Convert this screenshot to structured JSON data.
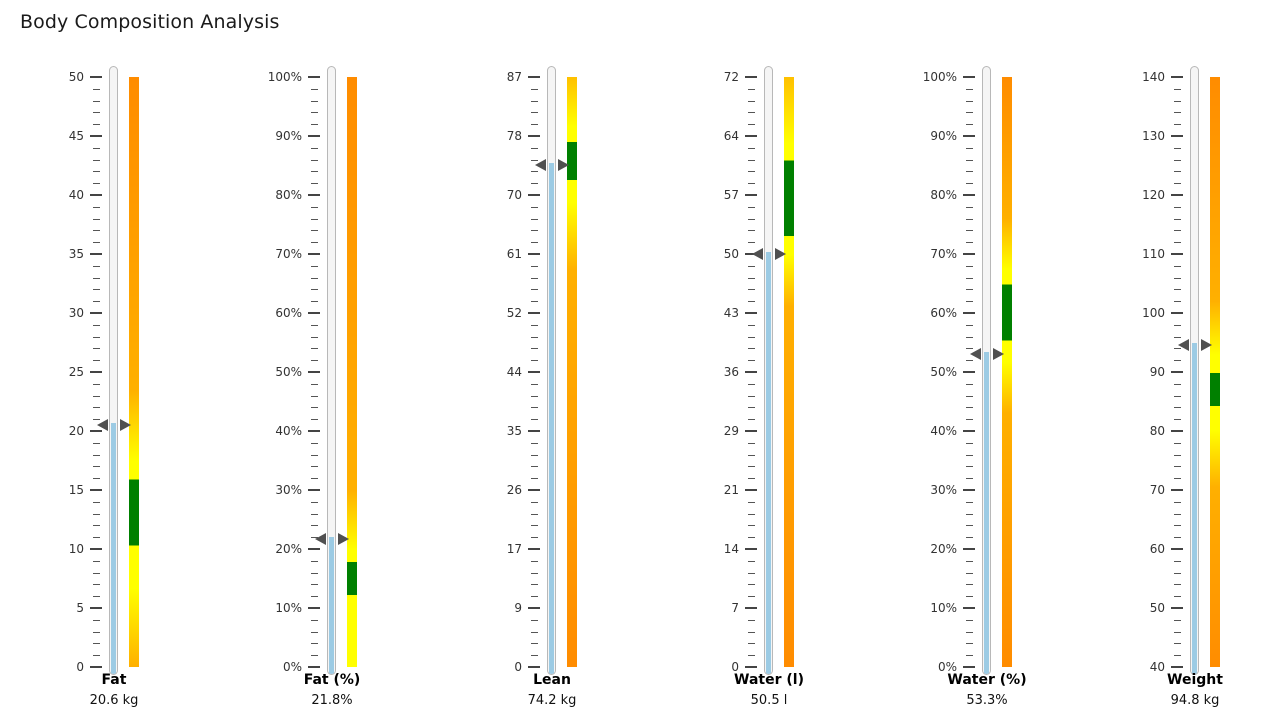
{
  "title": "Body Composition Analysis",
  "colors": {
    "fill": "#9ccbe4",
    "tube": "#f5f5f5",
    "green": "#008000",
    "yellow": "#ffff00",
    "orange": "#ff8c00",
    "pointer": "#505050"
  },
  "chart_data": {
    "type": "bar",
    "title": "Body Composition Analysis",
    "subtype": "linear-gauge",
    "categories": [
      "Fat",
      "Fat (%)",
      "Lean",
      "Water (l)",
      "Water (%)",
      "Weight"
    ],
    "values": [
      20.6,
      21.8,
      74.2,
      50.5,
      53.3,
      94.8
    ],
    "gauges": [
      {
        "label": "Fat",
        "value": 20.6,
        "display": "20.6 kg",
        "unit": "kg",
        "min": 0,
        "max": 50,
        "ticks": [
          "0",
          "5",
          "10",
          "15",
          "20",
          "25",
          "30",
          "35",
          "40",
          "45",
          "50"
        ],
        "normal_range": [
          10.3,
          15.9
        ],
        "zones": [
          {
            "from": 0,
            "to": 3,
            "color": "#ffb000"
          },
          {
            "from": 3,
            "to": 10.3,
            "color": "#ffff00"
          },
          {
            "from": 10.3,
            "to": 15.9,
            "color": "#008000"
          },
          {
            "from": 15.9,
            "to": 19,
            "color": "#ffff00"
          },
          {
            "from": 19,
            "to": 28,
            "color": "#ffb000"
          },
          {
            "from": 28,
            "to": 50,
            "color": "#ff8c00"
          }
        ]
      },
      {
        "label": "Fat (%)",
        "value": 21.8,
        "display": "21.8%",
        "unit": "%",
        "min": 0,
        "max": 100,
        "ticks": [
          "0%",
          "10%",
          "20%",
          "30%",
          "40%",
          "50%",
          "60%",
          "70%",
          "80%",
          "90%",
          "100%"
        ],
        "normal_range": [
          12.2,
          17.8
        ],
        "zones": [
          {
            "from": 0,
            "to": 12.2,
            "color": "#ffff00"
          },
          {
            "from": 12.2,
            "to": 17.8,
            "color": "#008000"
          },
          {
            "from": 17.8,
            "to": 22,
            "color": "#ffff00"
          },
          {
            "from": 22,
            "to": 38,
            "color": "#ffb000"
          },
          {
            "from": 38,
            "to": 100,
            "color": "#ff8c00"
          }
        ]
      },
      {
        "label": "Lean",
        "value": 74.2,
        "display": "74.2 kg",
        "unit": "kg",
        "min": 0,
        "max": 87,
        "ticks": [
          "0",
          "9",
          "17",
          "26",
          "35",
          "44",
          "52",
          "61",
          "70",
          "78",
          "87"
        ],
        "normal_range": [
          71.8,
          77.4
        ],
        "zones": [
          {
            "from": 0,
            "to": 52,
            "color": "#ff8c00"
          },
          {
            "from": 52,
            "to": 65,
            "color": "#ffb000"
          },
          {
            "from": 65,
            "to": 71.8,
            "color": "#ffff00"
          },
          {
            "from": 71.8,
            "to": 77.4,
            "color": "#008000"
          },
          {
            "from": 77.4,
            "to": 82,
            "color": "#ffff00"
          },
          {
            "from": 82,
            "to": 87,
            "color": "#ffc000"
          }
        ]
      },
      {
        "label": "Water (l)",
        "value": 50.5,
        "display": "50.5 l",
        "unit": "l",
        "min": 0,
        "max": 72,
        "ticks": [
          "0",
          "7",
          "14",
          "21",
          "29",
          "36",
          "43",
          "50",
          "57",
          "64",
          "72"
        ],
        "normal_range": [
          52.6,
          61.8
        ],
        "zones": [
          {
            "from": 0,
            "to": 40,
            "color": "#ff8c00"
          },
          {
            "from": 40,
            "to": 48,
            "color": "#ffb000"
          },
          {
            "from": 48,
            "to": 52.6,
            "color": "#ffff00"
          },
          {
            "from": 52.6,
            "to": 61.8,
            "color": "#008000"
          },
          {
            "from": 61.8,
            "to": 66,
            "color": "#ffff00"
          },
          {
            "from": 66,
            "to": 72,
            "color": "#ffc000"
          }
        ]
      },
      {
        "label": "Water (%)",
        "value": 53.3,
        "display": "53.3%",
        "unit": "%",
        "min": 0,
        "max": 100,
        "ticks": [
          "0%",
          "10%",
          "20%",
          "30%",
          "40%",
          "50%",
          "60%",
          "70%",
          "80%",
          "90%",
          "100%"
        ],
        "normal_range": [
          55.3,
          64.8
        ],
        "zones": [
          {
            "from": 0,
            "to": 38,
            "color": "#ff8c00"
          },
          {
            "from": 38,
            "to": 48,
            "color": "#ffb000"
          },
          {
            "from": 48,
            "to": 55.3,
            "color": "#ffff00"
          },
          {
            "from": 55.3,
            "to": 64.8,
            "color": "#008000"
          },
          {
            "from": 64.8,
            "to": 70,
            "color": "#ffff00"
          },
          {
            "from": 70,
            "to": 82,
            "color": "#ffb000"
          },
          {
            "from": 82,
            "to": 100,
            "color": "#ff8c00"
          }
        ]
      },
      {
        "label": "Weight",
        "value": 94.8,
        "display": "94.8 kg",
        "unit": "kg",
        "min": 40,
        "max": 140,
        "ticks": [
          "40",
          "50",
          "60",
          "70",
          "80",
          "90",
          "100",
          "110",
          "120",
          "130",
          "140"
        ],
        "normal_range": [
          84.2,
          89.8
        ],
        "zones": [
          {
            "from": 40,
            "to": 65,
            "color": "#ff8c00"
          },
          {
            "from": 65,
            "to": 76,
            "color": "#ffb000"
          },
          {
            "from": 76,
            "to": 84.2,
            "color": "#ffff00"
          },
          {
            "from": 84.2,
            "to": 89.8,
            "color": "#008000"
          },
          {
            "from": 89.8,
            "to": 96,
            "color": "#ffff00"
          },
          {
            "from": 96,
            "to": 108,
            "color": "#ffb000"
          },
          {
            "from": 108,
            "to": 140,
            "color": "#ff8c00"
          }
        ]
      }
    ]
  },
  "gauges": [
    {
      "label": "Fat",
      "display": "20.6 kg"
    },
    {
      "label": "Fat (%)",
      "display": "21.8%"
    },
    {
      "label": "Lean",
      "display": "74.2 kg"
    },
    {
      "label": "Water (l)",
      "display": "50.5 l"
    },
    {
      "label": "Water (%)",
      "display": "53.3%"
    },
    {
      "label": "Weight",
      "display": "94.8 kg"
    }
  ]
}
